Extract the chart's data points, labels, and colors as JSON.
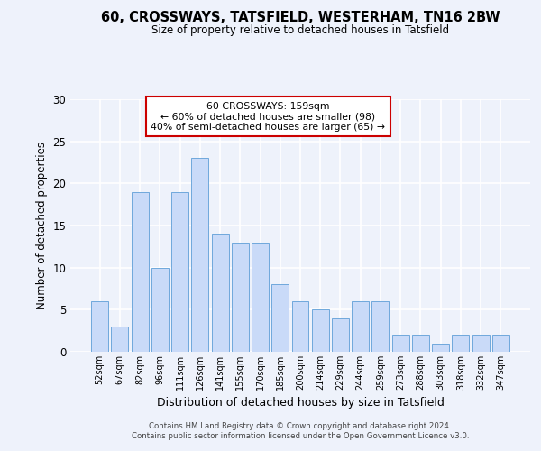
{
  "title_line1": "60, CROSSWAYS, TATSFIELD, WESTERHAM, TN16 2BW",
  "title_line2": "Size of property relative to detached houses in Tatsfield",
  "xlabel": "Distribution of detached houses by size in Tatsfield",
  "ylabel": "Number of detached properties",
  "categories": [
    "52sqm",
    "67sqm",
    "82sqm",
    "96sqm",
    "111sqm",
    "126sqm",
    "141sqm",
    "155sqm",
    "170sqm",
    "185sqm",
    "200sqm",
    "214sqm",
    "229sqm",
    "244sqm",
    "259sqm",
    "273sqm",
    "288sqm",
    "303sqm",
    "318sqm",
    "332sqm",
    "347sqm"
  ],
  "values": [
    6,
    3,
    19,
    10,
    19,
    23,
    14,
    13,
    13,
    8,
    6,
    5,
    4,
    6,
    6,
    2,
    2,
    1,
    2,
    2,
    2
  ],
  "bar_color": "#c9daf8",
  "bar_edge_color": "#6fa8dc",
  "ylim": [
    0,
    30
  ],
  "yticks": [
    0,
    5,
    10,
    15,
    20,
    25,
    30
  ],
  "annotation_title": "60 CROSSWAYS: 159sqm",
  "annotation_line2": "← 60% of detached houses are smaller (98)",
  "annotation_line3": "40% of semi-detached houses are larger (65) →",
  "annotation_box_color": "#ffffff",
  "annotation_box_edge": "#cc0000",
  "footer_line1": "Contains HM Land Registry data © Crown copyright and database right 2024.",
  "footer_line2": "Contains public sector information licensed under the Open Government Licence v3.0.",
  "background_color": "#eef2fb",
  "grid_color": "#ffffff"
}
